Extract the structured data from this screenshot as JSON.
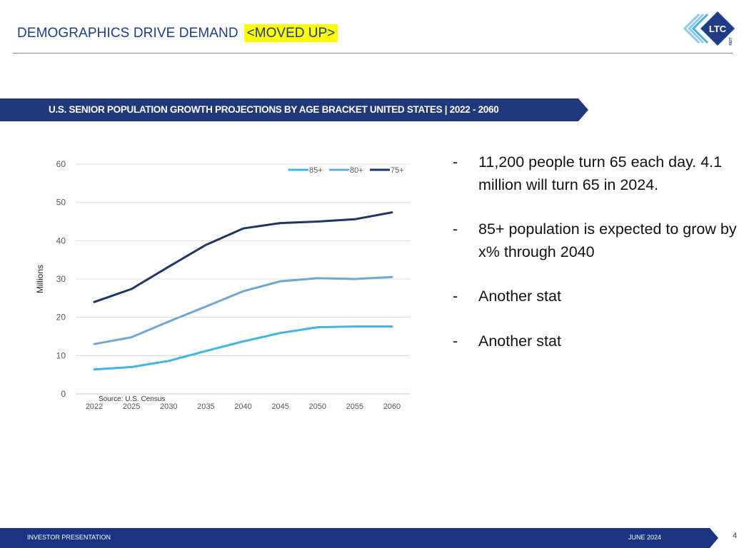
{
  "header": {
    "title": "DEMOGRAPHICS DRIVE DEMAND",
    "highlight": "<MOVED UP>",
    "logo_text": "LTC",
    "logo_subtext": "REIT"
  },
  "banner": {
    "text": "U.S. SENIOR POPULATION GROWTH PROJECTIONS BY AGE BRACKET UNITED STATES | 2022 - 2060"
  },
  "chart_data": {
    "type": "line",
    "title": "",
    "xlabel": "",
    "ylabel": "Millions",
    "ylim": [
      0,
      60
    ],
    "yticks": [
      "0",
      "10",
      "20",
      "30",
      "40",
      "50",
      "60"
    ],
    "categories": [
      "2022",
      "2025",
      "2030",
      "2035",
      "2040",
      "2045",
      "2050",
      "2055",
      "2060"
    ],
    "series": [
      {
        "name": "85+",
        "color": "#41b6e6",
        "values": [
          6.4,
          7.0,
          8.6,
          11.2,
          13.7,
          15.9,
          17.4,
          17.6,
          17.6
        ]
      },
      {
        "name": "80+",
        "color": "#72a6d2",
        "values": [
          13.0,
          14.8,
          18.9,
          22.8,
          26.8,
          29.4,
          30.2,
          30.0,
          30.5
        ]
      },
      {
        "name": "75+",
        "color": "#1f3566",
        "values": [
          24.0,
          27.4,
          33.2,
          38.9,
          43.2,
          44.6,
          45.0,
          45.6,
          47.4
        ]
      }
    ],
    "grid": true,
    "legend": "top-right",
    "source": "Source: U.S. Census"
  },
  "bullets": [
    "11,200 people turn 65 each day. 4.1 million will turn 65 in 2024.",
    "85+ population is expected to grow by x% through 2040",
    "Another stat",
    "Another stat"
  ],
  "bullet_marker": "-",
  "footer": {
    "left": "INVESTOR PRESENTATION",
    "date": "JUNE 2024",
    "page": "4"
  },
  "colors": {
    "brand_navy": "#1f3c88",
    "banner": "#21397a",
    "footer": "#1c3384"
  }
}
